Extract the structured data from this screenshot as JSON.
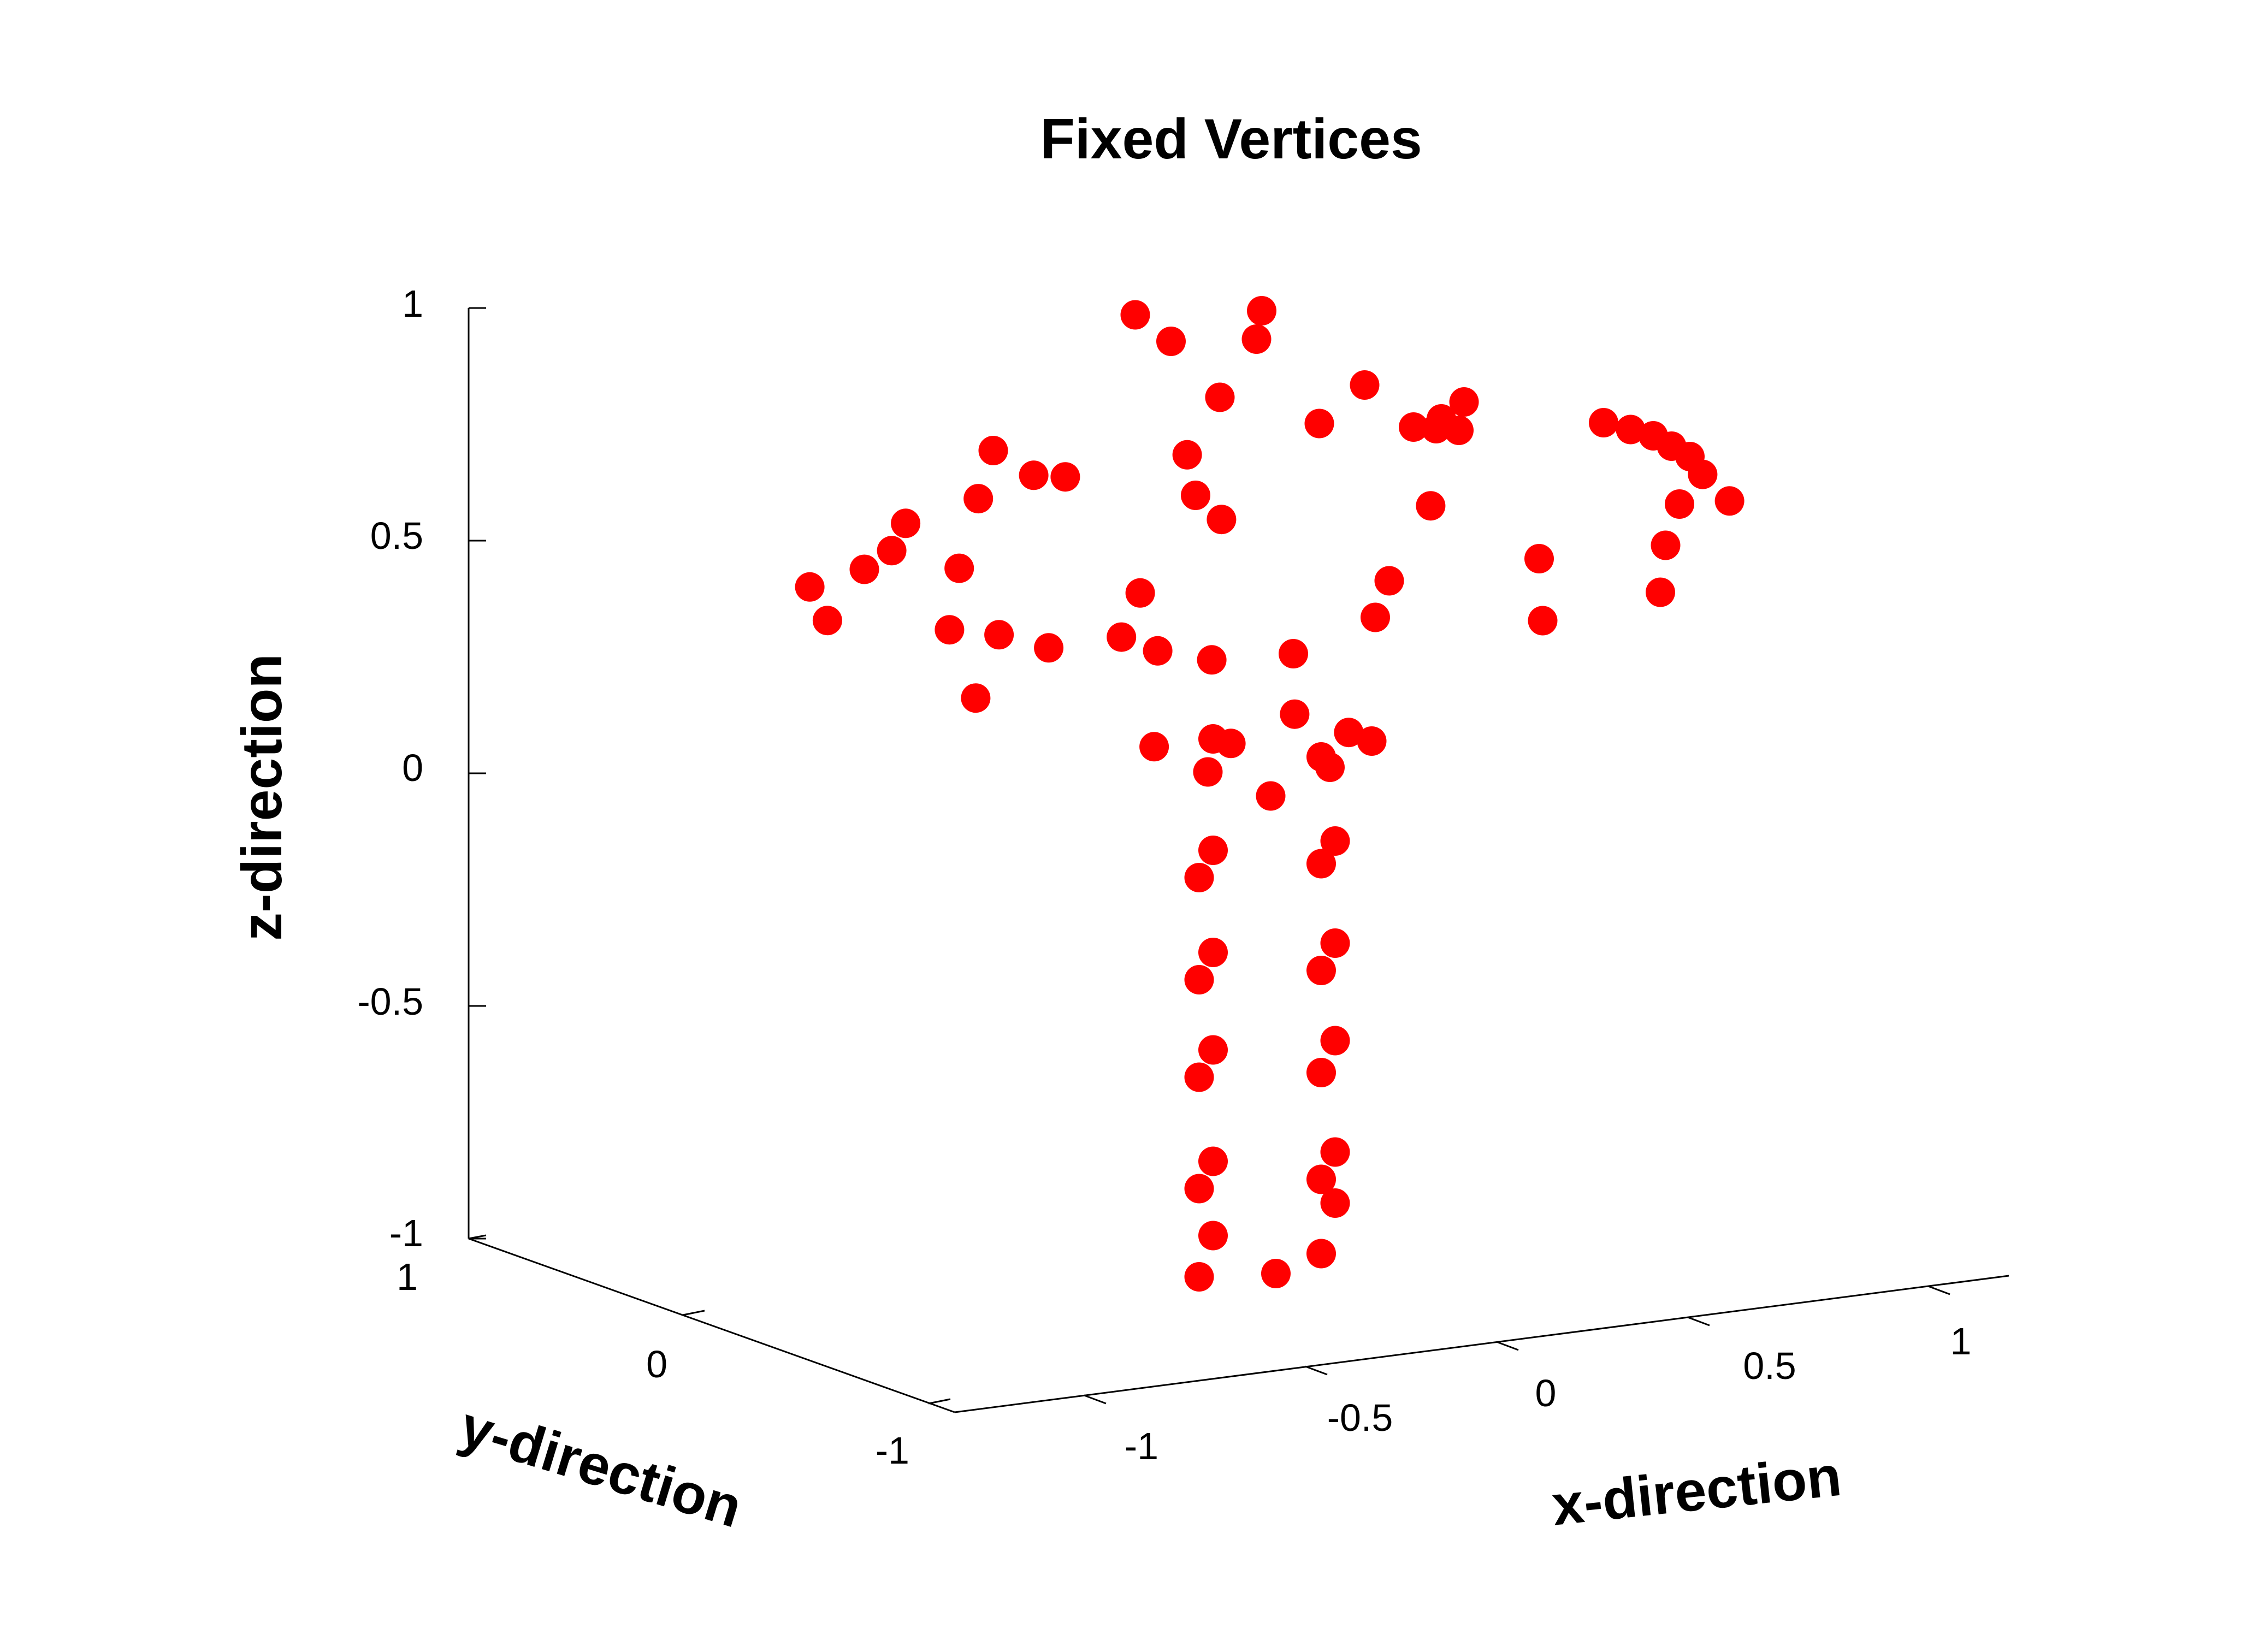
{
  "chart_data": {
    "type": "scatter3d",
    "title": "Fixed Vertices",
    "xlabel": "x-direction",
    "ylabel": "y-direction",
    "zlabel": "z-direction",
    "xticks": [
      "-1",
      "-0.5",
      "0",
      "0.5",
      "1"
    ],
    "yticks": [
      "-1",
      "0",
      "1"
    ],
    "zticks": [
      "-1",
      "-0.5",
      "0",
      "0.5",
      "1"
    ],
    "marker_color": "#ff0000",
    "series": [
      {
        "points": [
          [
            -0.98,
            -0.15,
            0.56
          ],
          [
            -0.97,
            -0.3,
            0.49
          ],
          [
            -0.85,
            -0.1,
            0.58
          ],
          [
            -0.78,
            -0.05,
            0.61
          ],
          [
            -0.73,
            0.05,
            0.66
          ],
          [
            -0.72,
            -0.4,
            0.44
          ],
          [
            -0.66,
            -0.2,
            0.56
          ],
          [
            -0.72,
            -0.7,
            0.3
          ],
          [
            -0.63,
            -0.5,
            0.42
          ],
          [
            -0.56,
            0.1,
            0.69
          ],
          [
            -0.53,
            -0.55,
            0.38
          ],
          [
            -0.45,
            0.5,
            0.77
          ],
          [
            -0.38,
            0.4,
            0.71
          ],
          [
            -0.32,
            0.35,
            0.7
          ],
          [
            -0.36,
            -0.5,
            0.38
          ],
          [
            -0.28,
            -0.5,
            0.34
          ],
          [
            -0.28,
            -0.3,
            0.46
          ],
          [
            -0.18,
            -0.6,
            0.31
          ],
          [
            -0.12,
            -0.4,
            0.6
          ],
          [
            -0.1,
            0.0,
            0.64
          ],
          [
            -0.08,
            0.2,
            0.72
          ],
          [
            -0.05,
            0.95,
            1.0
          ],
          [
            0.0,
            0.8,
            0.94
          ],
          [
            0.05,
            0.5,
            0.82
          ],
          [
            0.2,
            0.8,
            0.98
          ],
          [
            0.15,
            0.6,
            0.93
          ],
          [
            0.25,
            0.4,
            0.74
          ],
          [
            0.35,
            0.4,
            0.81
          ],
          [
            0.4,
            0.1,
            0.72
          ],
          [
            0.45,
            0.1,
            0.71
          ],
          [
            0.5,
            0.1,
            0.7
          ],
          [
            0.5,
            0.3,
            0.72
          ],
          [
            0.55,
            0.3,
            0.75
          ],
          [
            0.38,
            -0.2,
            0.56
          ],
          [
            0.55,
            -0.6,
            0.3
          ],
          [
            0.6,
            -0.3,
            0.42
          ],
          [
            0.25,
            -0.4,
            0.42
          ],
          [
            0.2,
            -0.5,
            0.35
          ],
          [
            0.0,
            -0.6,
            0.3
          ],
          [
            0.8,
            0.0,
            0.68
          ],
          [
            0.85,
            -0.05,
            0.66
          ],
          [
            0.9,
            -0.05,
            0.64
          ],
          [
            0.95,
            0.0,
            0.61
          ],
          [
            1.0,
            0.05,
            0.58
          ],
          [
            0.98,
            -0.2,
            0.55
          ],
          [
            1.02,
            -0.3,
            0.49
          ],
          [
            0.9,
            -0.35,
            0.5
          ],
          [
            0.85,
            -0.45,
            0.42
          ],
          [
            0.8,
            -0.65,
            0.33
          ],
          [
            -0.23,
            -0.2,
            0.12
          ],
          [
            -0.15,
            -0.4,
            0.06
          ],
          [
            -0.08,
            -0.3,
            0.11
          ],
          [
            -0.1,
            -0.2,
            0.12
          ],
          [
            0.08,
            -0.2,
            0.15
          ],
          [
            0.1,
            -0.4,
            0.06
          ],
          [
            0.18,
            -0.3,
            0.1
          ],
          [
            0.25,
            -0.2,
            0.07
          ],
          [
            0.1,
            -0.5,
            0.04
          ],
          [
            -0.05,
            -0.6,
            0.0
          ],
          [
            -0.15,
            -0.3,
            -0.17
          ],
          [
            -0.1,
            -0.2,
            -0.12
          ],
          [
            0.1,
            -0.4,
            -0.17
          ],
          [
            0.15,
            -0.3,
            -0.13
          ],
          [
            -0.15,
            -0.3,
            -0.39
          ],
          [
            -0.1,
            -0.2,
            -0.34
          ],
          [
            0.1,
            -0.4,
            -0.4
          ],
          [
            0.15,
            -0.3,
            -0.35
          ],
          [
            -0.15,
            -0.3,
            -0.6
          ],
          [
            -0.1,
            -0.2,
            -0.55
          ],
          [
            0.1,
            -0.4,
            -0.62
          ],
          [
            0.15,
            -0.3,
            -0.56
          ],
          [
            -0.15,
            -0.3,
            -0.84
          ],
          [
            -0.1,
            -0.2,
            -0.79
          ],
          [
            0.1,
            -0.4,
            -0.85
          ],
          [
            0.15,
            -0.3,
            -0.8
          ],
          [
            -0.1,
            -0.2,
            -0.95
          ],
          [
            0.15,
            -0.3,
            -0.91
          ],
          [
            -0.15,
            -0.3,
            -1.03
          ],
          [
            0.0,
            -0.4,
            -1.04
          ],
          [
            0.1,
            -0.4,
            -1.01
          ]
        ]
      }
    ]
  }
}
